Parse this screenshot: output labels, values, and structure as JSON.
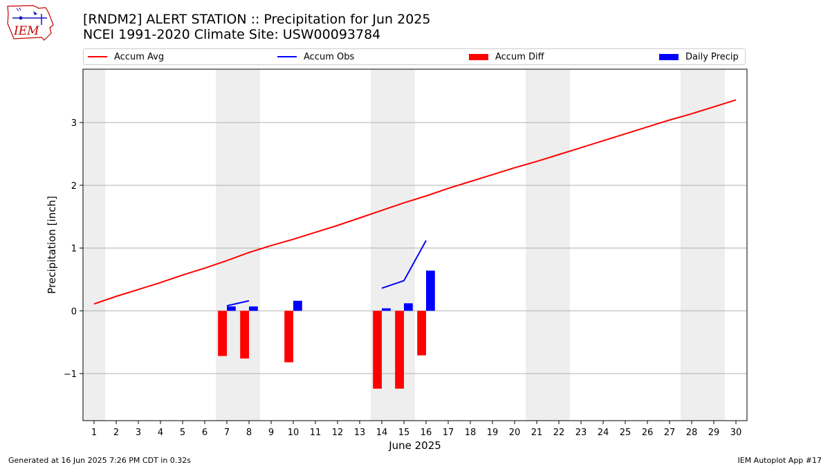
{
  "header": {
    "title_line1": "[RNDM2] ALERT STATION :: Precipitation for Jun 2025",
    "title_line2": "NCEI 1991-2020 Climate Site: USW00093784"
  },
  "logo": {
    "text": "IEM"
  },
  "footer": {
    "left": "Generated at 16 Jun 2025 7:26 PM CDT in 0.32s",
    "right": "IEM Autoplot App #17"
  },
  "chart_data": {
    "type": "bar",
    "xlabel": "June 2025",
    "ylabel": "Precipitation [inch]",
    "xlim": [
      0.5,
      30.5
    ],
    "ylim": [
      -1.75,
      3.85
    ],
    "x_ticks": [
      1,
      2,
      3,
      4,
      5,
      6,
      7,
      8,
      9,
      10,
      11,
      12,
      13,
      14,
      15,
      16,
      17,
      18,
      19,
      20,
      21,
      22,
      23,
      24,
      25,
      26,
      27,
      28,
      29,
      30
    ],
    "y_ticks": [
      -1,
      0,
      1,
      2,
      3
    ],
    "y_tick_labels": [
      "−1",
      "0",
      "1",
      "2",
      "3"
    ],
    "grid": "horizontal",
    "legend_position": "top",
    "weekend_spans": [
      [
        0.5,
        1.5
      ],
      [
        6.5,
        8.5
      ],
      [
        13.5,
        15.5
      ],
      [
        20.5,
        22.5
      ],
      [
        27.5,
        29.5
      ]
    ],
    "colors": {
      "accum_avg": "#ff0000",
      "accum_obs": "#0000ff",
      "accum_diff": "#ff0000",
      "daily_precip": "#0000ff",
      "weekend_shade": "#eeeeee",
      "grid": "#b0b0b0"
    },
    "series": [
      {
        "name": "Accum Avg",
        "kind": "line",
        "x": [
          1,
          2,
          3,
          4,
          5,
          6,
          7,
          8,
          9,
          10,
          11,
          12,
          13,
          14,
          15,
          16,
          17,
          18,
          19,
          20,
          21,
          22,
          23,
          24,
          25,
          26,
          27,
          28,
          29,
          30
        ],
        "values": [
          0.11,
          0.23,
          0.34,
          0.45,
          0.57,
          0.68,
          0.8,
          0.93,
          1.04,
          1.14,
          1.25,
          1.36,
          1.48,
          1.6,
          1.72,
          1.83,
          1.95,
          2.06,
          2.17,
          2.28,
          2.38,
          2.49,
          2.6,
          2.71,
          2.82,
          2.93,
          3.04,
          3.14,
          3.25,
          3.36
        ]
      },
      {
        "name": "Accum Obs",
        "kind": "line",
        "segments": [
          {
            "x": [
              7,
              8
            ],
            "values": [
              0.08,
              0.16
            ]
          },
          {
            "x": [
              14,
              15,
              16
            ],
            "values": [
              0.36,
              0.48,
              1.12
            ]
          }
        ]
      },
      {
        "name": "Accum Diff",
        "kind": "bar",
        "x": [
          7,
          8,
          10,
          14,
          15,
          16
        ],
        "values": [
          -0.72,
          -0.76,
          -0.82,
          -1.24,
          -1.24,
          -0.71
        ]
      },
      {
        "name": "Daily Precip",
        "kind": "bar",
        "x": [
          7,
          8,
          10,
          14,
          15,
          16
        ],
        "values": [
          0.07,
          0.07,
          0.16,
          0.04,
          0.12,
          0.64
        ]
      }
    ]
  }
}
